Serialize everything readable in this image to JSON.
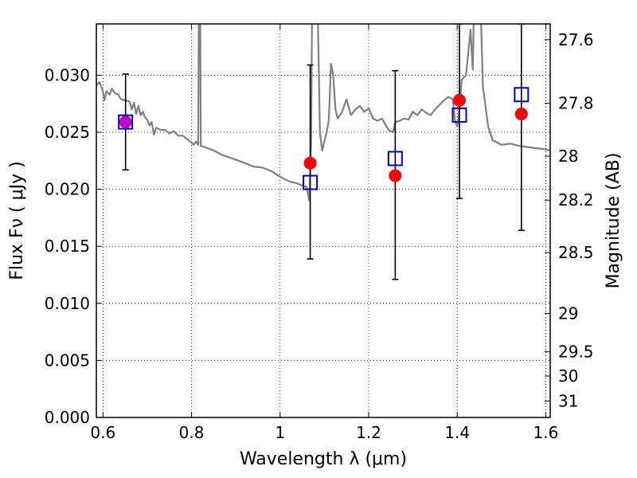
{
  "chart_data": {
    "type": "scatter",
    "title": "",
    "xlabel": "Wavelength  λ (μm)",
    "ylabel": "Flux  Fν  ( μJy )",
    "ylabel_right": "Magnitude (AB)",
    "xlim": [
      0.585,
      1.61
    ],
    "ylim": [
      0.0,
      0.0345
    ],
    "grid": true,
    "x_ticks": [
      0.6,
      0.8,
      1.0,
      1.2,
      1.4,
      1.6
    ],
    "x_tick_labels": [
      "0.6",
      "0.8",
      "1",
      "1.2",
      "1.4",
      "1.6"
    ],
    "y_ticks": [
      0.0,
      0.005,
      0.01,
      0.015,
      0.02,
      0.025,
      0.03
    ],
    "y_tick_labels": [
      "0.000",
      "0.005",
      "0.010",
      "0.015",
      "0.020",
      "0.025",
      "0.030"
    ],
    "right_ticks": [
      {
        "label": "27.6",
        "value": 27.6
      },
      {
        "label": "27.8",
        "value": 27.8
      },
      {
        "label": "28",
        "value": 28.0
      },
      {
        "label": "28.2",
        "value": 28.2
      },
      {
        "label": "28.5",
        "value": 28.5
      },
      {
        "label": "29",
        "value": 29.0
      },
      {
        "label": "29.5",
        "value": 29.5
      },
      {
        "label": "30",
        "value": 30.0
      },
      {
        "label": "31",
        "value": 31.0
      }
    ],
    "series": [
      {
        "kind": "line",
        "color": "#808080",
        "points": [
          [
            0.585,
            0.0291
          ],
          [
            0.592,
            0.0294
          ],
          [
            0.6,
            0.0286
          ],
          [
            0.603,
            0.0278
          ],
          [
            0.608,
            0.0286
          ],
          [
            0.615,
            0.0283
          ],
          [
            0.62,
            0.0288
          ],
          [
            0.628,
            0.0284
          ],
          [
            0.635,
            0.0283
          ],
          [
            0.64,
            0.0279
          ],
          [
            0.65,
            0.0278
          ],
          [
            0.66,
            0.0277
          ],
          [
            0.665,
            0.027
          ],
          [
            0.67,
            0.0276
          ],
          [
            0.675,
            0.0266
          ],
          [
            0.68,
            0.0273
          ],
          [
            0.685,
            0.0265
          ],
          [
            0.69,
            0.0268
          ],
          [
            0.695,
            0.0263
          ],
          [
            0.7,
            0.0261
          ],
          [
            0.705,
            0.0256
          ],
          [
            0.71,
            0.0259
          ],
          [
            0.715,
            0.0248
          ],
          [
            0.72,
            0.0254
          ],
          [
            0.73,
            0.0252
          ],
          [
            0.74,
            0.0252
          ],
          [
            0.75,
            0.0249
          ],
          [
            0.76,
            0.0251
          ],
          [
            0.77,
            0.0247
          ],
          [
            0.78,
            0.0247
          ],
          [
            0.79,
            0.0244
          ],
          [
            0.8,
            0.0241
          ],
          [
            0.805,
            0.0239
          ],
          [
            0.81,
            0.0242
          ],
          [
            0.815,
            0.0239
          ],
          [
            0.817,
            0.04
          ],
          [
            0.819,
            0.04
          ],
          [
            0.821,
            0.0238
          ],
          [
            0.83,
            0.0237
          ],
          [
            0.85,
            0.0234
          ],
          [
            0.87,
            0.023
          ],
          [
            0.9,
            0.0226
          ],
          [
            0.92,
            0.0223
          ],
          [
            0.94,
            0.022
          ],
          [
            0.96,
            0.0219
          ],
          [
            0.98,
            0.0216
          ],
          [
            1.0,
            0.0211
          ],
          [
            1.02,
            0.0207
          ],
          [
            1.04,
            0.0205
          ],
          [
            1.06,
            0.0202
          ],
          [
            1.066,
            0.019
          ],
          [
            1.07,
            0.024
          ],
          [
            1.073,
            0.04
          ],
          [
            1.083,
            0.04
          ],
          [
            1.09,
            0.025
          ],
          [
            1.095,
            0.0234
          ],
          [
            1.105,
            0.025
          ],
          [
            1.11,
            0.0261
          ],
          [
            1.115,
            0.031
          ],
          [
            1.12,
            0.03
          ],
          [
            1.125,
            0.027
          ],
          [
            1.13,
            0.0262
          ],
          [
            1.14,
            0.0268
          ],
          [
            1.15,
            0.0279
          ],
          [
            1.16,
            0.0265
          ],
          [
            1.17,
            0.027
          ],
          [
            1.18,
            0.0273
          ],
          [
            1.19,
            0.0268
          ],
          [
            1.2,
            0.0271
          ],
          [
            1.21,
            0.0262
          ],
          [
            1.22,
            0.026
          ],
          [
            1.23,
            0.0262
          ],
          [
            1.245,
            0.0252
          ],
          [
            1.255,
            0.025
          ],
          [
            1.26,
            0.0259
          ],
          [
            1.27,
            0.026
          ],
          [
            1.28,
            0.0262
          ],
          [
            1.29,
            0.0261
          ],
          [
            1.3,
            0.0268
          ],
          [
            1.31,
            0.0265
          ],
          [
            1.32,
            0.027
          ],
          [
            1.33,
            0.0267
          ],
          [
            1.34,
            0.0265
          ],
          [
            1.35,
            0.027
          ],
          [
            1.36,
            0.0274
          ],
          [
            1.37,
            0.0278
          ],
          [
            1.38,
            0.0281
          ],
          [
            1.39,
            0.0279
          ],
          [
            1.395,
            0.026
          ],
          [
            1.4,
            0.0255
          ],
          [
            1.405,
            0.027
          ],
          [
            1.41,
            0.0296
          ],
          [
            1.42,
            0.03
          ],
          [
            1.43,
            0.034
          ],
          [
            1.435,
            0.0305
          ],
          [
            1.44,
            0.04
          ],
          [
            1.45,
            0.04
          ],
          [
            1.458,
            0.029
          ],
          [
            1.47,
            0.0255
          ],
          [
            1.48,
            0.0243
          ],
          [
            1.49,
            0.0241
          ],
          [
            1.5,
            0.0239
          ],
          [
            1.52,
            0.024
          ],
          [
            1.54,
            0.0238
          ],
          [
            1.56,
            0.0237
          ],
          [
            1.58,
            0.0236
          ],
          [
            1.6,
            0.0235
          ],
          [
            1.61,
            0.0234
          ]
        ]
      },
      {
        "kind": "points",
        "marker": "circle",
        "color": "#ff0000",
        "x": [
          1.068,
          1.26,
          1.405,
          1.545
        ],
        "y": [
          0.0223,
          0.0212,
          0.0278,
          0.0266
        ]
      },
      {
        "kind": "points",
        "marker": "circle",
        "color": "#bf00bf",
        "x": [
          0.651
        ],
        "y": [
          0.0259
        ]
      },
      {
        "kind": "points",
        "marker": "square",
        "color": "#0000cc",
        "x": [
          0.651,
          1.068,
          1.26,
          1.405,
          1.545
        ],
        "y": [
          0.0259,
          0.0206,
          0.0227,
          0.0265,
          0.0283
        ]
      },
      {
        "kind": "errorbars",
        "color": "#000000",
        "x": [
          0.651,
          1.068,
          1.26,
          1.405,
          1.545
        ],
        "y_low": [
          0.0217,
          0.0139,
          0.0121,
          0.0192,
          0.0164
        ],
        "y_high": [
          0.0301,
          0.0309,
          0.0304,
          0.0345,
          0.0345
        ]
      }
    ]
  }
}
